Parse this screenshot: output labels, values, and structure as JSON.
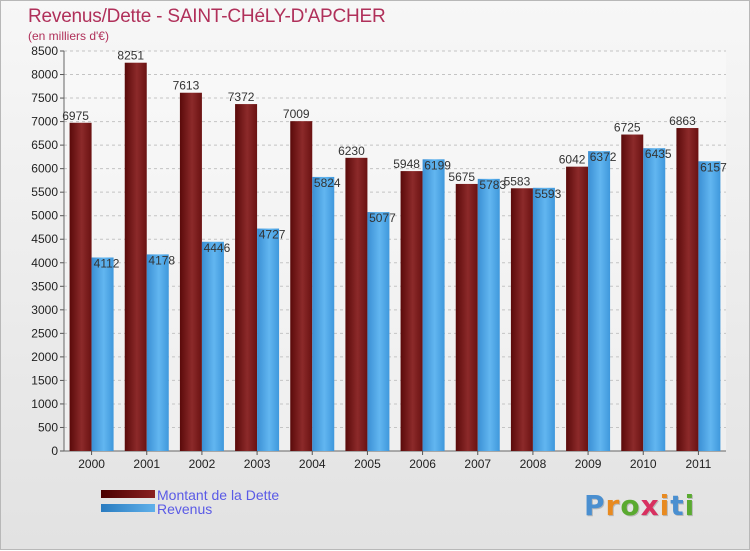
{
  "chart_data": {
    "type": "bar",
    "title": "Revenus/Dette - SAINT-CHéLY-D'APCHER",
    "subtitle": "(en milliers d'€)",
    "categories": [
      "2000",
      "2001",
      "2002",
      "2003",
      "2004",
      "2005",
      "2006",
      "2007",
      "2008",
      "2009",
      "2010",
      "2011"
    ],
    "series": [
      {
        "name": "Montant de la Dette",
        "color": "#7a1c1c",
        "values": [
          6975,
          8251,
          7613,
          7372,
          7009,
          6230,
          5948,
          5675,
          5583,
          6042,
          6725,
          6863
        ]
      },
      {
        "name": "Revenus",
        "color": "#4aa3e6",
        "values": [
          4112,
          4178,
          4446,
          4727,
          5824,
          5077,
          6199,
          5783,
          5593,
          6372,
          6435,
          6157
        ]
      }
    ],
    "yticks": [
      0,
      500,
      1000,
      1500,
      2000,
      2500,
      3000,
      3500,
      4000,
      4500,
      5000,
      5500,
      6000,
      6500,
      7000,
      7500,
      8000,
      8500
    ],
    "ylim": [
      0,
      8500
    ],
    "grid": "horizontal",
    "legend_position": "bottom-left"
  },
  "logo": {
    "letters": [
      "P",
      "r",
      "o",
      "x",
      "i",
      "t",
      "i"
    ],
    "colors": [
      "#4a8fd0",
      "#e88a20",
      "#5aaa30",
      "#d83060",
      "#e88a20",
      "#4a8fd0",
      "#5aaa30"
    ]
  }
}
